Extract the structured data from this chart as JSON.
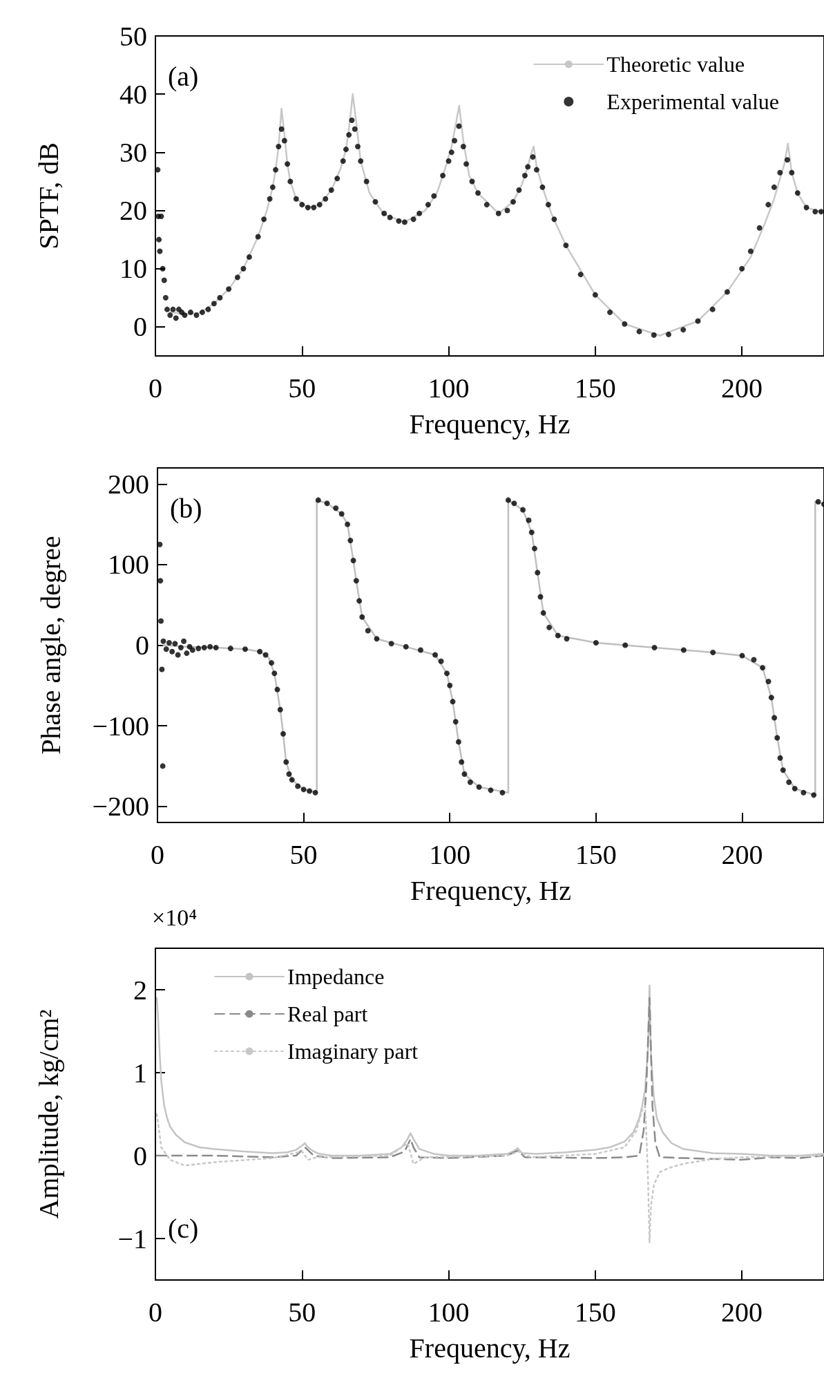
{
  "chart_data": [
    {
      "type": "line",
      "xlabel": "Frequency, Hz",
      "ylabel": "SPTF, dB",
      "annotations": [
        "(a)"
      ],
      "xlim": [
        0,
        228
      ],
      "xticks": [
        0,
        50,
        100,
        150,
        200
      ],
      "ylim": [
        -5,
        50
      ],
      "yticks": [
        0,
        10,
        20,
        30,
        40,
        50
      ],
      "grid": false,
      "legend": "top right",
      "series": [
        {
          "name": "Theoretic value",
          "color": "#c8c8c8",
          "marker": "none",
          "line_style": "solid",
          "x": [
            5,
            10,
            15,
            20,
            25,
            30,
            35,
            38,
            40,
            41,
            42,
            43,
            44,
            45,
            46,
            48,
            52,
            56,
            60,
            63,
            65,
            66,
            67.3,
            68.5,
            70,
            73,
            78,
            85,
            92,
            96,
            99,
            101,
            102.5,
            103.6,
            105,
            107,
            110,
            117,
            122,
            125,
            127,
            128,
            129,
            130,
            132,
            135,
            140,
            150,
            160,
            172,
            185,
            195,
            203,
            208,
            211,
            213,
            214.5,
            215.7,
            217,
            219,
            222,
            227
          ],
          "values": [
            2.5,
            2.2,
            2.4,
            4,
            6.5,
            10,
            15.5,
            20,
            24,
            27,
            31,
            37.5,
            33,
            28,
            25,
            22,
            20.5,
            21,
            23.5,
            27,
            30.5,
            34,
            40,
            35,
            28.5,
            23,
            19.3,
            18,
            20,
            23,
            27.5,
            31,
            35,
            38,
            32,
            26,
            23,
            19.5,
            21.5,
            24.5,
            27.5,
            29.5,
            31,
            27.5,
            24,
            19.5,
            14,
            5.5,
            0.5,
            -1.5,
            1,
            6,
            12,
            18,
            22,
            25.5,
            28,
            31.5,
            26.5,
            23,
            20.5,
            19.8
          ]
        },
        {
          "name": "Experimental value",
          "color": "#000000",
          "type": "scatter",
          "marker": "circle",
          "x": [
            0.8,
            1,
            1.2,
            1.5,
            2,
            2.5,
            3,
            3.5,
            4,
            5,
            6,
            7,
            8,
            9,
            10,
            12,
            14,
            16,
            18,
            20,
            22,
            25,
            28,
            30,
            32,
            35,
            37,
            39,
            40,
            41,
            42,
            43,
            44,
            45,
            46,
            48,
            50,
            52,
            54,
            56,
            58,
            60,
            62,
            64,
            65,
            66,
            67,
            68,
            69,
            70,
            72,
            75,
            78,
            80,
            83,
            85,
            88,
            90,
            93,
            95,
            98,
            100,
            101,
            102,
            103.5,
            105,
            106,
            108,
            110,
            113,
            117,
            120,
            122,
            124,
            126,
            127,
            128.7,
            130,
            132,
            134,
            136,
            140,
            145,
            150,
            155,
            160,
            165,
            170,
            175,
            180,
            185,
            190,
            195,
            200,
            203,
            206,
            209,
            211,
            213,
            215.5,
            217,
            219,
            222,
            225,
            227
          ],
          "values": [
            27,
            19,
            15,
            13,
            19,
            10,
            8,
            5,
            3,
            2,
            3,
            1.5,
            3,
            2.5,
            2,
            2.5,
            2,
            2.5,
            3,
            4,
            5,
            6.5,
            8.5,
            10,
            12,
            15.5,
            18.5,
            22,
            24,
            27,
            31,
            34,
            32,
            28,
            25,
            22,
            21,
            20.5,
            20.5,
            21,
            22,
            23.5,
            25.5,
            28.5,
            30.5,
            33,
            35.5,
            34,
            31,
            28.5,
            25,
            21.5,
            19.5,
            18.8,
            18.2,
            18,
            18.5,
            19.5,
            21,
            22.5,
            26,
            28.5,
            30,
            32,
            34.5,
            31,
            28,
            25,
            23,
            21,
            19.5,
            20,
            21.5,
            23.5,
            26,
            27.5,
            29.2,
            27,
            24,
            21,
            18.5,
            14,
            9,
            5.5,
            2.5,
            0.5,
            -0.8,
            -1.4,
            -1.3,
            -0.5,
            1,
            3,
            6,
            10,
            13,
            17,
            21,
            24,
            26.5,
            28.7,
            26.5,
            23,
            20.5,
            19.8,
            19.8
          ]
        }
      ]
    },
    {
      "type": "line",
      "xlabel": "Frequency, Hz",
      "ylabel": "Phase angle, degree",
      "annotations": [
        "(b)"
      ],
      "xlim": [
        0,
        228
      ],
      "xticks": [
        0,
        50,
        100,
        150,
        200
      ],
      "ylim": [
        -220,
        220
      ],
      "yticks": [
        {
          "value": -200,
          "label": "−200"
        },
        {
          "value": -100,
          "label": "−100"
        },
        0,
        100,
        200
      ],
      "grid": false,
      "series": [
        {
          "color": "#bfbfbf",
          "marker": "none",
          "line_style": "solid",
          "x": [
            2,
            10,
            20,
            30,
            35,
            38,
            40,
            42,
            43,
            44,
            46,
            50,
            54.5,
            54.5,
            58,
            63,
            65,
            67,
            68,
            70,
            75,
            85,
            95,
            99,
            101,
            103,
            105,
            110,
            120,
            120,
            125,
            128,
            130,
            132,
            137,
            150,
            170,
            190,
            200,
            207,
            210,
            212,
            214,
            218,
            225,
            225,
            228
          ],
          "values": [
            0,
            -2,
            -3,
            -5,
            -8,
            -15,
            -35,
            -80,
            -110,
            -145,
            -167,
            -179,
            -183,
            180,
            176,
            163,
            150,
            105,
            80,
            35,
            8,
            -2,
            -12,
            -35,
            -70,
            -120,
            -160,
            -176,
            -183,
            180,
            168,
            140,
            90,
            40,
            12,
            3,
            -3,
            -9,
            -13,
            -28,
            -65,
            -115,
            -155,
            -178,
            -186,
            178,
            175
          ]
        },
        {
          "color": "#000000",
          "type": "scatter",
          "marker": "circle",
          "x": [
            0.8,
            1,
            1.2,
            1.5,
            1.8,
            2,
            3,
            4,
            5,
            6,
            7,
            8,
            9,
            10,
            11,
            12,
            14,
            16,
            18,
            20,
            25,
            30,
            35,
            37,
            39,
            40,
            41,
            42,
            43,
            44,
            45,
            46,
            48,
            50,
            52,
            54,
            55,
            58,
            61,
            63,
            65,
            66,
            67,
            68,
            69,
            70,
            72,
            75,
            80,
            85,
            90,
            95,
            97,
            99,
            100,
            101,
            102,
            103,
            104,
            105,
            107,
            110,
            114,
            118,
            120,
            122,
            125,
            127,
            128,
            129,
            130,
            131,
            132,
            134,
            137,
            140,
            150,
            160,
            170,
            180,
            190,
            200,
            204,
            207,
            209,
            210,
            211,
            212,
            213,
            214,
            216,
            218,
            221,
            224.5,
            226,
            228
          ],
          "values": [
            125,
            80,
            30,
            -30,
            -150,
            5,
            -5,
            3,
            -8,
            2,
            -12,
            -3,
            5,
            -10,
            -2,
            -6,
            -4,
            -3,
            -2,
            -3,
            -4,
            -5,
            -8,
            -12,
            -22,
            -35,
            -55,
            -80,
            -110,
            -145,
            -160,
            -167,
            -175,
            -179,
            -181,
            -183,
            180,
            176,
            170,
            163,
            150,
            130,
            105,
            80,
            55,
            35,
            18,
            8,
            2,
            -2,
            -6,
            -12,
            -20,
            -35,
            -50,
            -70,
            -95,
            -120,
            -145,
            -160,
            -170,
            -176,
            -180,
            -183,
            180,
            176,
            168,
            155,
            140,
            120,
            90,
            60,
            40,
            22,
            12,
            8,
            3,
            0,
            -3,
            -6,
            -9,
            -13,
            -18,
            -28,
            -45,
            -65,
            -90,
            -115,
            -140,
            -155,
            -170,
            -178,
            -183,
            -186,
            178,
            175
          ]
        }
      ]
    },
    {
      "type": "line",
      "xlabel": "Frequency, Hz",
      "ylabel": "Amplitude, kg/cm²",
      "annotations": [
        "(c)",
        "×10⁴"
      ],
      "xlim": [
        0,
        228
      ],
      "xticks": [
        0,
        50,
        100,
        150,
        200
      ],
      "ylim": [
        -1.5,
        2.5
      ],
      "yticks": [
        {
          "value": -1,
          "label": "−1"
        },
        0,
        1,
        2
      ],
      "grid": false,
      "legend": "top left",
      "series": [
        {
          "name": "Impedance",
          "color": "#c4c4c4",
          "marker": "none",
          "line_style": "solid",
          "x": [
            0.5,
            1,
            1.5,
            2,
            3,
            4,
            5,
            7,
            10,
            15,
            20,
            30,
            40,
            45,
            48,
            50,
            51,
            52,
            54,
            56,
            60,
            70,
            80,
            84,
            86,
            87,
            88,
            90,
            95,
            100,
            110,
            120,
            122,
            123.5,
            125,
            130,
            140,
            150,
            155,
            160,
            163,
            165,
            166,
            167,
            168,
            168.5,
            169,
            170,
            171,
            173,
            176,
            180,
            190,
            200,
            210,
            220,
            228
          ],
          "values": [
            1.9,
            1.6,
            1.2,
            0.9,
            0.6,
            0.45,
            0.35,
            0.25,
            0.16,
            0.1,
            0.08,
            0.05,
            0.03,
            0.04,
            0.07,
            0.12,
            0.15,
            0.1,
            0.05,
            0.02,
            0,
            0,
            0.02,
            0.1,
            0.2,
            0.27,
            0.2,
            0.08,
            0.02,
            0,
            0,
            0.02,
            0.05,
            0.09,
            0.03,
            0.02,
            0.04,
            0.07,
            0.1,
            0.17,
            0.28,
            0.45,
            0.6,
            0.8,
            1.3,
            2.05,
            1.2,
            0.7,
            0.45,
            0.28,
            0.15,
            0.08,
            0.03,
            0.02,
            0,
            0,
            0.02
          ]
        },
        {
          "name": "Real part",
          "color": "#8a8a8a",
          "marker": "none",
          "line_style": "dashed",
          "x": [
            0.5,
            5,
            20,
            40,
            48,
            51,
            54,
            60,
            80,
            85,
            87,
            88,
            90,
            100,
            120,
            123.5,
            126,
            150,
            160,
            165,
            166.5,
            167.5,
            168.5,
            169.5,
            170.5,
            172,
            180,
            200,
            210,
            220,
            228
          ],
          "values": [
            0,
            0,
            0,
            -0.02,
            0,
            0.1,
            0,
            -0.03,
            -0.02,
            0.05,
            0.2,
            0.1,
            -0.02,
            -0.03,
            0,
            0.06,
            -0.02,
            -0.03,
            -0.02,
            0,
            0.3,
            0.9,
            1.9,
            0.6,
            0.15,
            -0.02,
            -0.03,
            -0.05,
            -0.02,
            -0.03,
            0
          ]
        },
        {
          "name": "Imaginary part",
          "color": "#c8c8c8",
          "marker": "none",
          "line_style": "dotted",
          "x": [
            0.5,
            2,
            5,
            10,
            20,
            40,
            50,
            52,
            55,
            80,
            86,
            88,
            92,
            120,
            124,
            128,
            150,
            160,
            164,
            166,
            167,
            167.5,
            168,
            168.5,
            169,
            170,
            172,
            175,
            180,
            190,
            200,
            228
          ],
          "values": [
            0.5,
            0.1,
            -0.05,
            -0.12,
            -0.08,
            -0.03,
            0.05,
            -0.05,
            -0.02,
            0,
            0.15,
            -0.1,
            -0.02,
            0,
            0.05,
            -0.02,
            0.02,
            0.1,
            0.3,
            0.55,
            0.6,
            0.2,
            -0.3,
            -1.05,
            -0.6,
            -0.35,
            -0.2,
            -0.15,
            -0.1,
            -0.04,
            -0.02,
            0
          ]
        }
      ]
    }
  ]
}
